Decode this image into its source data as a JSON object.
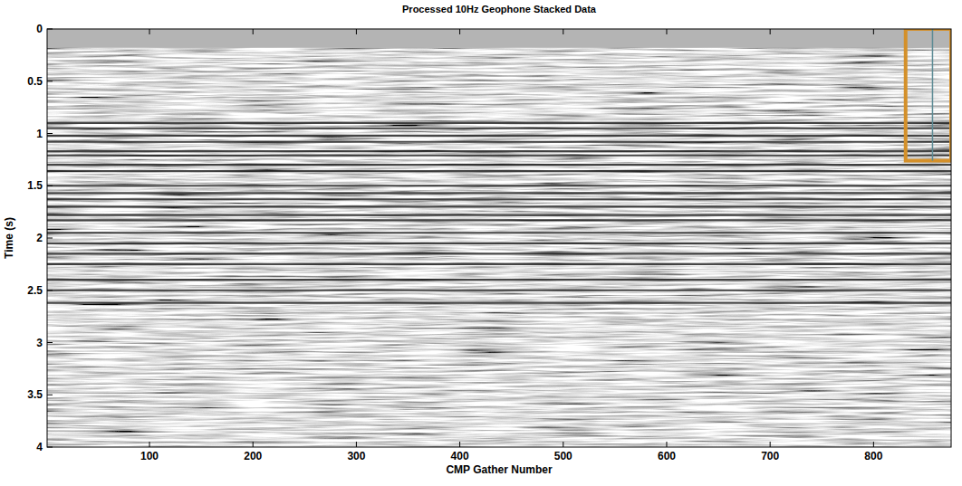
{
  "chart_data": {
    "type": "image",
    "title": "Processed 10Hz Geophone Stacked Data",
    "x_label": "CMP Gather Number",
    "y_label": "Time (s)",
    "xlim": [
      1,
      875
    ],
    "ylim": [
      0,
      4
    ],
    "xticks": [
      100,
      200,
      300,
      400,
      500,
      600,
      700,
      800
    ],
    "yticks": [
      0,
      0.5,
      1,
      1.5,
      2,
      2.5,
      3,
      3.5,
      4
    ],
    "mute_end": 0.18,
    "reflectors": [
      0.9,
      0.95,
      1.02,
      1.08,
      1.17,
      1.21,
      1.3,
      1.36,
      1.5,
      1.57,
      1.63,
      1.7,
      1.78,
      1.83,
      1.95,
      2.05,
      2.15,
      2.25,
      2.4,
      2.5,
      2.62
    ],
    "annotations": [
      {
        "type": "box",
        "x": [
          831,
          875
        ],
        "y": [
          0,
          1.26
        ],
        "color": "#d4902a"
      },
      {
        "type": "vline",
        "x": 857,
        "color": "#5b8a94"
      }
    ]
  }
}
